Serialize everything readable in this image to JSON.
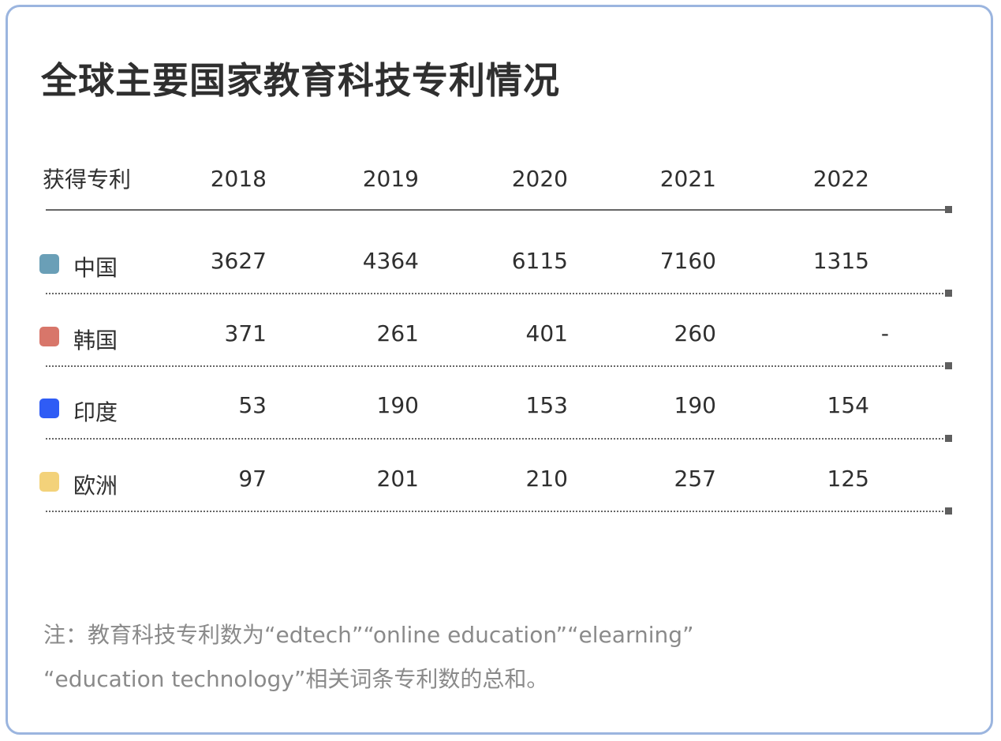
{
  "title": "全球主要国家教育科技专利情况",
  "chart_data": {
    "type": "table",
    "title": "全球主要国家教育科技专利情况",
    "row_header": "获得专利",
    "categories": [
      "2018",
      "2019",
      "2020",
      "2021",
      "2022"
    ],
    "series": [
      {
        "name": "中国",
        "color": "#6a9fb7",
        "values": [
          "3627",
          "4364",
          "6115",
          "7160",
          "1315"
        ]
      },
      {
        "name": "韩国",
        "color": "#d8766a",
        "values": [
          "371",
          "261",
          "401",
          "260",
          "-"
        ]
      },
      {
        "name": "印度",
        "color": "#2f5cf5",
        "values": [
          "53",
          "190",
          "153",
          "190",
          "154"
        ]
      },
      {
        "name": "欧洲",
        "color": "#f3d27a",
        "values": [
          "97",
          "201",
          "210",
          "257",
          "125"
        ]
      }
    ]
  },
  "note": {
    "line1": "注：教育科技专利数为“edtech”“online education”“elearning”",
    "line2": "“education technology”相关词条专利数的总和。"
  }
}
